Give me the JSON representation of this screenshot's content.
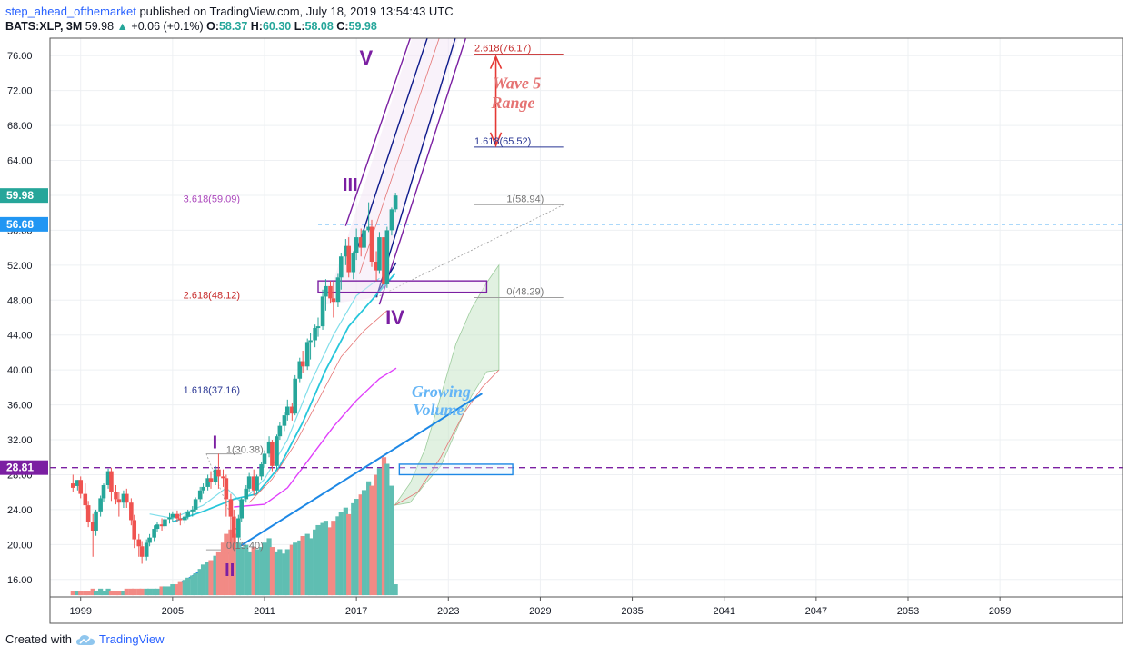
{
  "header": {
    "author": "step_ahead_ofthemarket",
    "published": "published on TradingView.com, July 18, 2019 13:54:43 UTC",
    "symbol": "BATS:XLP, 3M",
    "last": "59.98",
    "change": "+0.06 (+0.1%)",
    "o_label": "O:",
    "o_value": "58.37",
    "h_label": "H:",
    "h_value": "60.30",
    "l_label": "L:",
    "l_value": "58.08",
    "c_label": "C:",
    "c_value": "59.98"
  },
  "footer": {
    "created_with": "Created with",
    "brand": "TradingView"
  },
  "colors": {
    "up": "#26a69a",
    "down": "#ef5350",
    "volume_up": "#5fbeb2",
    "volume_down": "#f28a85",
    "violet": "#7b1fa2",
    "navy": "#0d1a8c",
    "blue": "#1e88e5",
    "salmon": "#e57373",
    "cyan": "#26c6da",
    "magenta": "#e040fb",
    "green_fill": "#c8e6c9"
  },
  "chart_data": {
    "type": "candlestick",
    "symbol": "BATS:XLP",
    "interval": "3M",
    "ylim": [
      14,
      78
    ],
    "xlim": [
      1997,
      2067
    ],
    "y_ticks": [
      "16.00",
      "20.00",
      "24.00",
      "28.00",
      "32.00",
      "36.00",
      "40.00",
      "44.00",
      "48.00",
      "52.00",
      "56.00",
      "60.00",
      "64.00",
      "68.00",
      "72.00",
      "76.00"
    ],
    "x_ticks": [
      "1999",
      "2005",
      "2011",
      "2017",
      "2023",
      "2029",
      "2035",
      "2041",
      "2047",
      "2053",
      "2059"
    ],
    "price_labels": [
      {
        "value": 59.98,
        "text": "59.98",
        "color": "#26a69a"
      },
      {
        "value": 56.68,
        "text": "56.68",
        "color": "#2196f3"
      },
      {
        "value": 28.81,
        "text": "28.81",
        "color": "#7b1fa2"
      }
    ],
    "candles": [
      {
        "t": 1998.5,
        "o": 27.0,
        "h": 28.0,
        "c": 26.5,
        "l": 26.0
      },
      {
        "t": 1998.8,
        "o": 26.7,
        "h": 27.4,
        "c": 27.4,
        "l": 26.2
      },
      {
        "t": 1999.0,
        "o": 27.4,
        "h": 27.8,
        "c": 25.8,
        "l": 25.3
      },
      {
        "t": 1999.3,
        "o": 25.8,
        "h": 27.0,
        "c": 24.5,
        "l": 24.1
      },
      {
        "t": 1999.5,
        "o": 24.5,
        "h": 25.0,
        "c": 22.6,
        "l": 22.0
      },
      {
        "t": 1999.8,
        "o": 22.6,
        "h": 23.5,
        "c": 21.6,
        "l": 18.6
      },
      {
        "t": 2000.0,
        "o": 21.6,
        "h": 24.0,
        "c": 23.8,
        "l": 21.0
      },
      {
        "t": 2000.3,
        "o": 23.8,
        "h": 25.6,
        "c": 25.3,
        "l": 23.2
      },
      {
        "t": 2000.5,
        "o": 25.3,
        "h": 27.0,
        "c": 26.8,
        "l": 24.9
      },
      {
        "t": 2000.8,
        "o": 26.8,
        "h": 28.7,
        "c": 28.4,
        "l": 26.4
      },
      {
        "t": 2001.0,
        "o": 28.4,
        "h": 28.8,
        "c": 26.0,
        "l": 25.0
      },
      {
        "t": 2001.3,
        "o": 26.0,
        "h": 26.8,
        "c": 25.2,
        "l": 24.6
      },
      {
        "t": 2001.5,
        "o": 25.2,
        "h": 26.0,
        "c": 24.8,
        "l": 23.2
      },
      {
        "t": 2001.8,
        "o": 24.8,
        "h": 26.2,
        "c": 25.8,
        "l": 24.2
      },
      {
        "t": 2002.0,
        "o": 25.8,
        "h": 26.4,
        "c": 24.8,
        "l": 24.2
      },
      {
        "t": 2002.3,
        "o": 24.8,
        "h": 25.3,
        "c": 22.8,
        "l": 22.2
      },
      {
        "t": 2002.5,
        "o": 22.8,
        "h": 23.4,
        "c": 20.6,
        "l": 19.6
      },
      {
        "t": 2002.8,
        "o": 20.6,
        "h": 21.2,
        "c": 19.8,
        "l": 18.6
      },
      {
        "t": 2003.0,
        "o": 19.8,
        "h": 20.4,
        "c": 18.6,
        "l": 17.8
      },
      {
        "t": 2003.3,
        "o": 18.6,
        "h": 20.6,
        "c": 20.2,
        "l": 18.2
      },
      {
        "t": 2003.5,
        "o": 20.2,
        "h": 21.2,
        "c": 20.8,
        "l": 19.8
      },
      {
        "t": 2003.8,
        "o": 20.8,
        "h": 22.2,
        "c": 21.8,
        "l": 20.4
      },
      {
        "t": 2004.0,
        "o": 21.8,
        "h": 22.6,
        "c": 22.3,
        "l": 21.4
      },
      {
        "t": 2004.3,
        "o": 22.3,
        "h": 23.0,
        "c": 22.1,
        "l": 21.6
      },
      {
        "t": 2004.5,
        "o": 22.1,
        "h": 23.2,
        "c": 22.9,
        "l": 21.8
      },
      {
        "t": 2004.8,
        "o": 22.9,
        "h": 23.6,
        "c": 23.1,
        "l": 22.4
      },
      {
        "t": 2005.0,
        "o": 23.1,
        "h": 23.8,
        "c": 23.5,
        "l": 22.6
      },
      {
        "t": 2005.3,
        "o": 23.5,
        "h": 23.9,
        "c": 23.0,
        "l": 22.6
      },
      {
        "t": 2005.5,
        "o": 23.0,
        "h": 23.6,
        "c": 22.8,
        "l": 22.2
      },
      {
        "t": 2005.8,
        "o": 22.8,
        "h": 23.4,
        "c": 23.2,
        "l": 22.4
      },
      {
        "t": 2006.0,
        "o": 23.2,
        "h": 24.0,
        "c": 23.8,
        "l": 22.9
      },
      {
        "t": 2006.3,
        "o": 23.8,
        "h": 24.4,
        "c": 24.0,
        "l": 23.2
      },
      {
        "t": 2006.5,
        "o": 24.0,
        "h": 25.4,
        "c": 25.2,
        "l": 23.8
      },
      {
        "t": 2006.8,
        "o": 25.2,
        "h": 26.6,
        "c": 26.2,
        "l": 24.8
      },
      {
        "t": 2007.0,
        "o": 26.2,
        "h": 27.0,
        "c": 26.6,
        "l": 25.8
      },
      {
        "t": 2007.3,
        "o": 26.6,
        "h": 28.0,
        "c": 27.6,
        "l": 26.2
      },
      {
        "t": 2007.5,
        "o": 27.6,
        "h": 28.4,
        "c": 27.2,
        "l": 26.4
      },
      {
        "t": 2007.8,
        "o": 27.2,
        "h": 29.0,
        "c": 28.6,
        "l": 26.8
      },
      {
        "t": 2008.0,
        "o": 28.6,
        "h": 30.4,
        "c": 27.8,
        "l": 26.4
      },
      {
        "t": 2008.3,
        "o": 27.8,
        "h": 28.6,
        "c": 27.6,
        "l": 26.6
      },
      {
        "t": 2008.5,
        "o": 27.6,
        "h": 28.0,
        "c": 25.2,
        "l": 23.2
      },
      {
        "t": 2008.8,
        "o": 25.2,
        "h": 25.8,
        "c": 23.2,
        "l": 19.6
      },
      {
        "t": 2009.0,
        "o": 23.2,
        "h": 24.0,
        "c": 20.8,
        "l": 19.4
      },
      {
        "t": 2009.3,
        "o": 20.8,
        "h": 23.4,
        "c": 23.0,
        "l": 20.2
      },
      {
        "t": 2009.5,
        "o": 23.0,
        "h": 25.4,
        "c": 25.2,
        "l": 22.6
      },
      {
        "t": 2009.8,
        "o": 25.2,
        "h": 26.8,
        "c": 26.4,
        "l": 24.8
      },
      {
        "t": 2010.0,
        "o": 26.4,
        "h": 28.2,
        "c": 27.8,
        "l": 26.0
      },
      {
        "t": 2010.3,
        "o": 27.8,
        "h": 28.6,
        "c": 26.2,
        "l": 25.6
      },
      {
        "t": 2010.5,
        "o": 26.2,
        "h": 28.0,
        "c": 27.8,
        "l": 25.8
      },
      {
        "t": 2010.8,
        "o": 27.8,
        "h": 29.4,
        "c": 29.2,
        "l": 27.4
      },
      {
        "t": 2011.0,
        "o": 29.2,
        "h": 30.8,
        "c": 30.4,
        "l": 28.8
      },
      {
        "t": 2011.3,
        "o": 30.4,
        "h": 32.4,
        "c": 31.8,
        "l": 30.0
      },
      {
        "t": 2011.5,
        "o": 31.8,
        "h": 32.0,
        "c": 29.0,
        "l": 28.4
      },
      {
        "t": 2011.8,
        "o": 29.0,
        "h": 32.6,
        "c": 32.4,
        "l": 28.6
      },
      {
        "t": 2012.0,
        "o": 32.4,
        "h": 34.0,
        "c": 33.6,
        "l": 32.0
      },
      {
        "t": 2012.3,
        "o": 33.6,
        "h": 35.2,
        "c": 34.8,
        "l": 33.0
      },
      {
        "t": 2012.5,
        "o": 34.8,
        "h": 36.6,
        "c": 35.8,
        "l": 34.2
      },
      {
        "t": 2012.8,
        "o": 35.8,
        "h": 36.2,
        "c": 35.0,
        "l": 34.2
      },
      {
        "t": 2013.0,
        "o": 35.0,
        "h": 39.4,
        "c": 39.0,
        "l": 34.8
      },
      {
        "t": 2013.3,
        "o": 39.0,
        "h": 41.4,
        "c": 41.0,
        "l": 38.6
      },
      {
        "t": 2013.5,
        "o": 41.0,
        "h": 42.2,
        "c": 40.4,
        "l": 39.6
      },
      {
        "t": 2013.8,
        "o": 40.4,
        "h": 43.6,
        "c": 43.2,
        "l": 40.0
      },
      {
        "t": 2014.0,
        "o": 43.2,
        "h": 44.2,
        "c": 43.4,
        "l": 41.2
      },
      {
        "t": 2014.3,
        "o": 43.4,
        "h": 45.2,
        "c": 44.8,
        "l": 42.6
      },
      {
        "t": 2014.5,
        "o": 44.8,
        "h": 46.0,
        "c": 45.0,
        "l": 43.8
      },
      {
        "t": 2014.8,
        "o": 45.0,
        "h": 49.2,
        "c": 48.4,
        "l": 44.6
      },
      {
        "t": 2015.0,
        "o": 48.4,
        "h": 50.4,
        "c": 49.6,
        "l": 46.8
      },
      {
        "t": 2015.3,
        "o": 49.6,
        "h": 50.2,
        "c": 48.2,
        "l": 47.6
      },
      {
        "t": 2015.5,
        "o": 48.2,
        "h": 50.2,
        "c": 47.8,
        "l": 46.0
      },
      {
        "t": 2015.8,
        "o": 47.8,
        "h": 51.0,
        "c": 50.6,
        "l": 47.2
      },
      {
        "t": 2016.0,
        "o": 50.6,
        "h": 53.4,
        "c": 53.0,
        "l": 49.2
      },
      {
        "t": 2016.3,
        "o": 53.0,
        "h": 55.0,
        "c": 54.2,
        "l": 52.0
      },
      {
        "t": 2016.5,
        "o": 54.2,
        "h": 55.2,
        "c": 51.2,
        "l": 50.6
      },
      {
        "t": 2016.8,
        "o": 51.2,
        "h": 53.6,
        "c": 53.4,
        "l": 50.4
      },
      {
        "t": 2017.0,
        "o": 53.4,
        "h": 56.2,
        "c": 55.2,
        "l": 52.6
      },
      {
        "t": 2017.3,
        "o": 55.2,
        "h": 56.2,
        "c": 54.0,
        "l": 53.0
      },
      {
        "t": 2017.5,
        "o": 54.0,
        "h": 56.4,
        "c": 56.0,
        "l": 53.6
      },
      {
        "t": 2017.8,
        "o": 56.0,
        "h": 59.2,
        "c": 56.4,
        "l": 55.8
      },
      {
        "t": 2018.0,
        "o": 56.4,
        "h": 57.2,
        "c": 52.4,
        "l": 51.8
      },
      {
        "t": 2018.3,
        "o": 52.4,
        "h": 53.6,
        "c": 51.4,
        "l": 50.2
      },
      {
        "t": 2018.5,
        "o": 51.4,
        "h": 55.8,
        "c": 55.2,
        "l": 51.0
      },
      {
        "t": 2018.8,
        "o": 55.2,
        "h": 56.4,
        "c": 49.8,
        "l": 48.8
      },
      {
        "t": 2019.0,
        "o": 49.8,
        "h": 56.4,
        "c": 56.0,
        "l": 49.4
      },
      {
        "t": 2019.3,
        "o": 56.0,
        "h": 58.6,
        "c": 58.4,
        "l": 55.4
      },
      {
        "t": 2019.55,
        "o": 58.4,
        "h": 60.3,
        "c": 59.98,
        "l": 58.1
      }
    ],
    "volume_upper_value": 30,
    "volume_bars": [
      0.02,
      0.02,
      0.02,
      0.02,
      0.02,
      0.03,
      0.02,
      0.03,
      0.02,
      0.03,
      0.02,
      0.02,
      0.02,
      0.02,
      0.03,
      0.03,
      0.03,
      0.03,
      0.03,
      0.03,
      0.03,
      0.03,
      0.03,
      0.04,
      0.04,
      0.04,
      0.05,
      0.05,
      0.06,
      0.07,
      0.08,
      0.09,
      0.1,
      0.12,
      0.14,
      0.15,
      0.16,
      0.18,
      0.2,
      0.24,
      0.28,
      0.3,
      0.28,
      0.24,
      0.22,
      0.23,
      0.2,
      0.22,
      0.21,
      0.22,
      0.24,
      0.26,
      0.22,
      0.2,
      0.21,
      0.19,
      0.21,
      0.23,
      0.24,
      0.25,
      0.27,
      0.28,
      0.26,
      0.3,
      0.32,
      0.33,
      0.34,
      0.31,
      0.34,
      0.36,
      0.38,
      0.4,
      0.37,
      0.42,
      0.44,
      0.46,
      0.48,
      0.52,
      0.5,
      0.55,
      0.58,
      0.63,
      0.6,
      0.5,
      0.05
    ],
    "labels": [
      {
        "text": "V",
        "t": 2017.2,
        "v": 75.0,
        "color": "#7b1fa2",
        "size": 22,
        "weight": "bold"
      },
      {
        "text": "III",
        "t": 2016.1,
        "v": 60.5,
        "color": "#7b1fa2",
        "size": 20,
        "weight": "bold"
      },
      {
        "text": "IV",
        "t": 2018.9,
        "v": 45.2,
        "color": "#7b1fa2",
        "size": 22,
        "weight": "bold"
      },
      {
        "text": "I",
        "t": 2007.6,
        "v": 31.0,
        "color": "#7b1fa2",
        "size": 20,
        "weight": "bold"
      },
      {
        "text": "II",
        "t": 2008.4,
        "v": 16.4,
        "color": "#7b1fa2",
        "size": 20,
        "weight": "bold"
      },
      {
        "text": "Wave 5",
        "t": 2025.9,
        "v": 72.2,
        "color": "#e57373",
        "size": 18,
        "weight": "bold",
        "italic": true,
        "font": "serif"
      },
      {
        "text": "Range",
        "t": 2025.8,
        "v": 70.0,
        "color": "#e57373",
        "size": 18,
        "weight": "bold",
        "italic": true,
        "font": "serif"
      },
      {
        "text": "Growing",
        "t": 2020.6,
        "v": 36.9,
        "color": "#64b5f6",
        "size": 18,
        "weight": "bold",
        "italic": true,
        "font": "serif"
      },
      {
        "text": "Volume",
        "t": 2020.7,
        "v": 34.8,
        "color": "#64b5f6",
        "size": 18,
        "weight": "bold",
        "italic": true,
        "font": "serif"
      }
    ],
    "fib_labels": [
      {
        "text": "2.618(76.17)",
        "t": 2024.7,
        "v": 76.5,
        "color": "#c62828"
      },
      {
        "text": "1.618(65.52)",
        "t": 2024.7,
        "v": 65.8,
        "color": "#283593"
      },
      {
        "text": "1(58.94)",
        "t": 2026.8,
        "v": 59.2,
        "color": "#757575"
      },
      {
        "text": "0(48.29)",
        "t": 2026.8,
        "v": 48.6,
        "color": "#757575"
      },
      {
        "text": "3.618(59.09)",
        "t": 2005.7,
        "v": 59.2,
        "color": "#ab47bc"
      },
      {
        "text": "2.618(48.12)",
        "t": 2005.7,
        "v": 48.2,
        "color": "#c62828"
      },
      {
        "text": "1.618(37.16)",
        "t": 2005.7,
        "v": 37.3,
        "color": "#283593"
      },
      {
        "text": "1(30.38)",
        "t": 2008.5,
        "v": 30.5,
        "color": "#757575"
      },
      {
        "text": "0(19.40)",
        "t": 2008.5,
        "v": 19.5,
        "color": "#757575"
      }
    ]
  }
}
